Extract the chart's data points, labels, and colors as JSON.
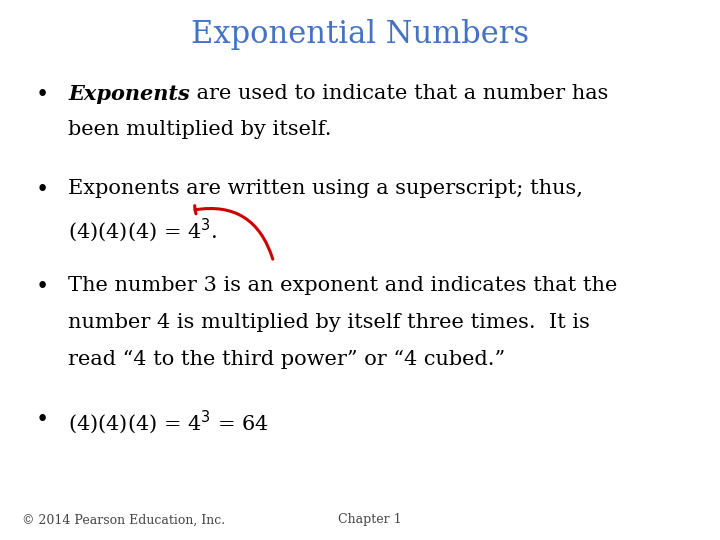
{
  "title": "Exponential Numbers",
  "title_color": "#4472C4",
  "title_fontsize": 22,
  "bg_color": "#ffffff",
  "bullet1_bold": "Exponents",
  "bullet1_rest": " are used to indicate that a number has",
  "bullet1_rest2": "been multiplied by itself.",
  "bullet2_line1": "Exponents are written using a superscript; thus,",
  "bullet2_line2": "(4)(4)(4) = 4$^{3}$.",
  "bullet3_line1": "The number 3 is an exponent and indicates that the",
  "bullet3_line2": "number 4 is multiplied by itself three times.  It is",
  "bullet3_line3": "read “4 to the third power” or “4 cubed.”",
  "bullet4_text": "(4)(4)(4) = 4$^{3}$ = 64",
  "footer_left": "© 2014 Pearson Education, Inc.",
  "footer_right": "Chapter 1",
  "text_color": "#000000",
  "footer_color": "#444444",
  "arrow_color": "#cc0000",
  "body_fontsize": 15,
  "footer_fontsize": 9
}
